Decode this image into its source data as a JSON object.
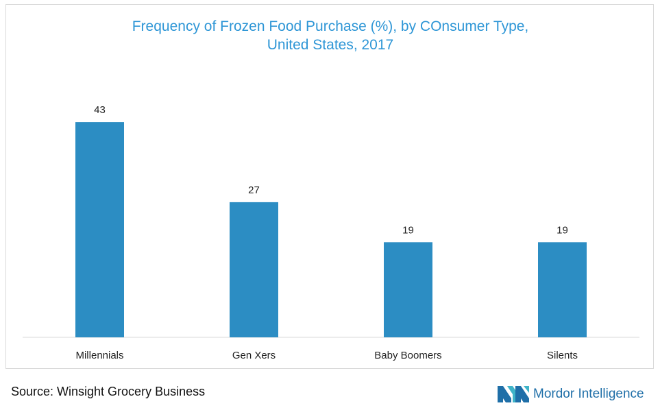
{
  "title_line1": "Frequency of Frozen Food Purchase (%), by COnsumer Type,",
  "title_line2": "United States, 2017",
  "source": "Source: Winsight Grocery Business",
  "logo_text": "Mordor Intelligence",
  "colors": {
    "bar": "#2c8dc3",
    "title": "#2e96d6",
    "logo": "#1f6fa8"
  },
  "chart_data": {
    "type": "bar",
    "title": "Frequency of Frozen Food Purchase (%), by COnsumer Type, United States, 2017",
    "categories": [
      "Millennials",
      "Gen Xers",
      "Baby Boomers",
      "Silents"
    ],
    "values": [
      43,
      27,
      19,
      19
    ],
    "data_labels": [
      "43",
      "27",
      "19",
      "19"
    ],
    "xlabel": "",
    "ylabel": "",
    "ylim": [
      0,
      50
    ],
    "grid": false,
    "legend": "none"
  }
}
